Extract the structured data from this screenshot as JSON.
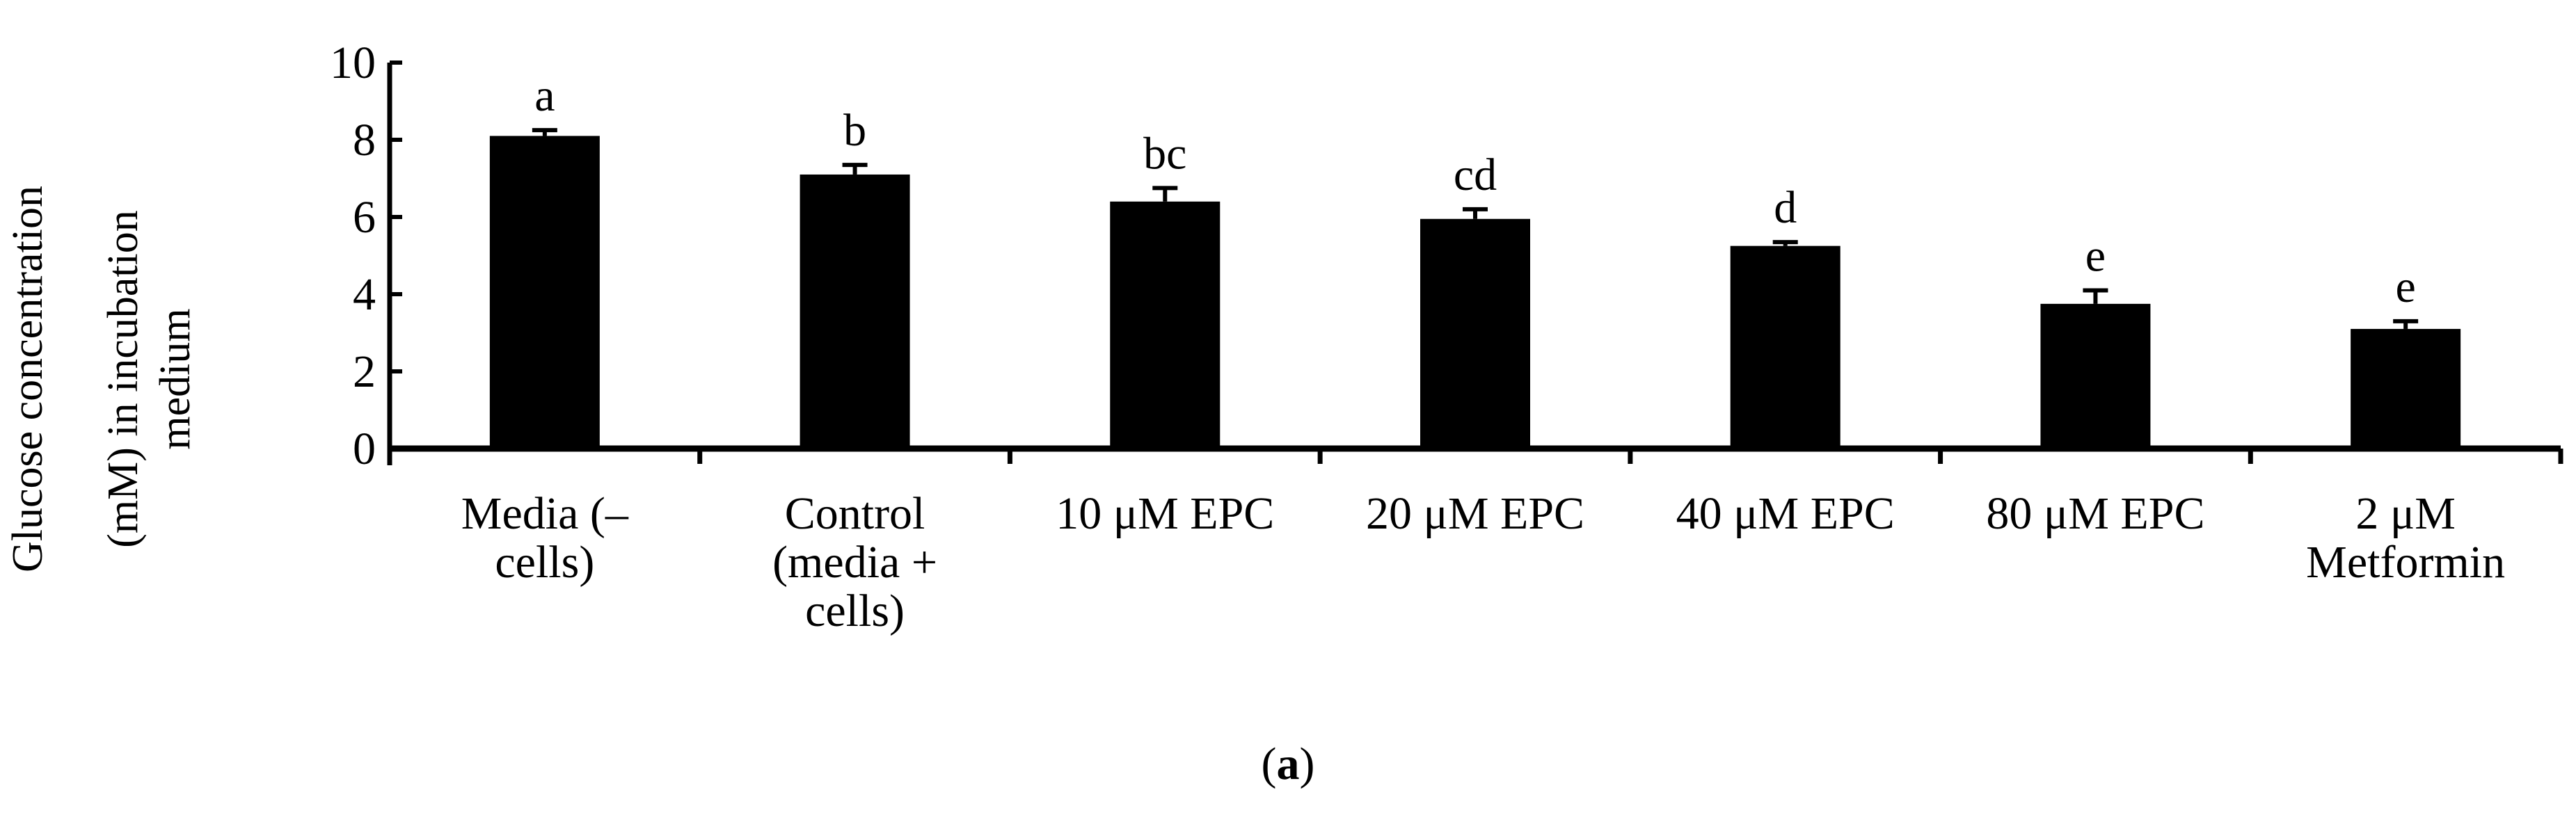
{
  "chart_data": {
    "type": "bar",
    "title": "",
    "xlabel": "",
    "ylabel_lines": [
      "Glucose concentration",
      "(mM) in incubation",
      "medium"
    ],
    "ylim": [
      0,
      10
    ],
    "yticks": [
      0,
      2,
      4,
      6,
      8,
      10
    ],
    "grid": false,
    "legend": "none",
    "categories": [
      {
        "id": "media",
        "label_lines": [
          "Media (–",
          "cells)"
        ],
        "value": 8.1,
        "error": 0.15,
        "letter": "a"
      },
      {
        "id": "control",
        "label_lines": [
          "Control",
          "(media +",
          "cells)"
        ],
        "value": 7.1,
        "error": 0.25,
        "letter": "b"
      },
      {
        "id": "epc-10",
        "label_lines": [
          "10 μM EPC"
        ],
        "value": 6.4,
        "error": 0.35,
        "letter": "bc"
      },
      {
        "id": "epc-20",
        "label_lines": [
          "20 μM EPC"
        ],
        "value": 5.95,
        "error": 0.25,
        "letter": "cd"
      },
      {
        "id": "epc-40",
        "label_lines": [
          "40 μM EPC"
        ],
        "value": 5.25,
        "error": 0.1,
        "letter": "d"
      },
      {
        "id": "epc-80",
        "label_lines": [
          "80 μM EPC"
        ],
        "value": 3.75,
        "error": 0.35,
        "letter": "e"
      },
      {
        "id": "metformin",
        "label_lines": [
          "2 μM",
          "Metformin"
        ],
        "value": 3.1,
        "error": 0.2,
        "letter": "e"
      }
    ],
    "bar_color": "#000000",
    "caption_open": "(",
    "caption_letter": "a",
    "caption_close": ")"
  }
}
